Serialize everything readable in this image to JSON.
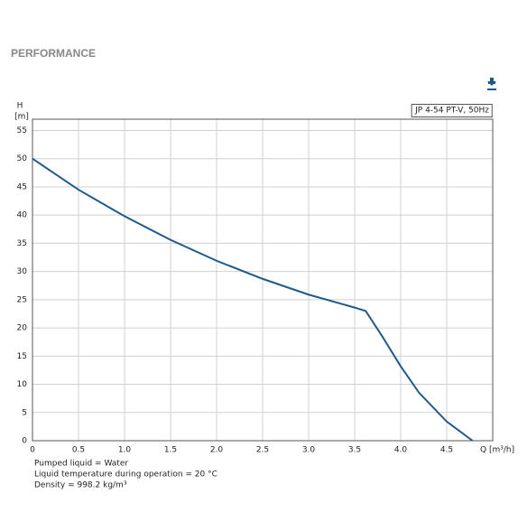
{
  "chart_data": {
    "type": "line",
    "title": "PERFORMANCE",
    "x_label": "Q [m³/h]",
    "y_label": "H",
    "y_unit": "[m]",
    "x": [
      0,
      0.5,
      1.0,
      1.5,
      2.0,
      2.5,
      3.0,
      3.5,
      3.62,
      3.8,
      4.0,
      4.2,
      4.5,
      4.78
    ],
    "series": [
      {
        "name": "JP 4-54 PT-V, 50Hz",
        "color": "#1f5a8a",
        "values": [
          50,
          44.5,
          39.8,
          35.6,
          31.9,
          28.7,
          25.9,
          23.6,
          23,
          18.5,
          13.2,
          8.5,
          3.4,
          0
        ]
      }
    ],
    "xlim": [
      0,
      5
    ],
    "ylim": [
      0,
      57
    ],
    "xticks": [
      0,
      0.5,
      {
        "value": 1,
        "label": "1.0"
      },
      1.5,
      {
        "value": 2,
        "label": "2.0"
      },
      2.5,
      {
        "value": 3,
        "label": "3.0"
      },
      3.5,
      {
        "value": 4,
        "label": "4.0"
      },
      4.5
    ],
    "yticks": [
      0,
      5,
      10,
      15,
      20,
      25,
      30,
      35,
      40,
      45,
      50,
      55
    ],
    "grid": true,
    "legend": "top-right",
    "notes": [
      "Pumped liquid = Water",
      "Liquid temperature during operation = 20 °C",
      "Density = 998.2 kg/m³"
    ]
  }
}
